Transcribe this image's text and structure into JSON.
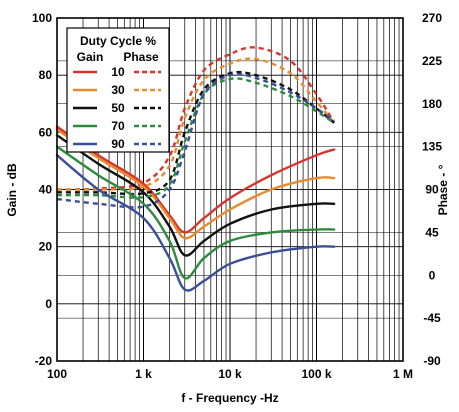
{
  "chart_data": {
    "type": "line",
    "xlabel": "f - Frequency -Hz",
    "ylabel_left": "Gain - dB",
    "ylabel_right": "Phase - °",
    "x_scale": "log",
    "xlim": [
      100,
      1000000
    ],
    "ylim_left": [
      -20,
      100
    ],
    "ylim_right": [
      -90,
      270
    ],
    "x_ticks": [
      {
        "value": 100,
        "label": "100"
      },
      {
        "value": 1000,
        "label": "1 k"
      },
      {
        "value": 10000,
        "label": "10 k"
      },
      {
        "value": 100000,
        "label": "100 k"
      },
      {
        "value": 1000000,
        "label": "1 M"
      }
    ],
    "y_ticks_left": [
      {
        "value": 100,
        "label": "100"
      },
      {
        "value": 80,
        "label": "80"
      },
      {
        "value": 60,
        "label": "60"
      },
      {
        "value": 40,
        "label": "40"
      },
      {
        "value": 20,
        "label": "20"
      },
      {
        "value": 0,
        "label": "0"
      },
      {
        "value": -20,
        "label": "-20"
      }
    ],
    "y_ticks_right": [
      {
        "value": 270,
        "label": "270"
      },
      {
        "value": 225,
        "label": "225"
      },
      {
        "value": 180,
        "label": "180"
      },
      {
        "value": 135,
        "label": "135"
      },
      {
        "value": 90,
        "label": "90"
      },
      {
        "value": 45,
        "label": "45"
      },
      {
        "value": 0,
        "label": "0"
      },
      {
        "value": -45,
        "label": "-45"
      },
      {
        "value": -90,
        "label": "-90"
      }
    ],
    "grid": true,
    "legend": {
      "title": "Duty Cycle %",
      "col_gain": "Gain",
      "col_phase": "Phase",
      "placement": "top-left"
    },
    "series": [
      {
        "name": "10",
        "color": "#d9342b",
        "gain_points": [
          [
            100,
            62
          ],
          [
            300,
            52
          ],
          [
            1000,
            42
          ],
          [
            2000,
            31
          ],
          [
            3000,
            25
          ],
          [
            5000,
            30
          ],
          [
            10000,
            37
          ],
          [
            30000,
            45
          ],
          [
            100000,
            52
          ],
          [
            160000,
            54
          ]
        ],
        "phase_points": [
          [
            100,
            90
          ],
          [
            300,
            91
          ],
          [
            1000,
            97
          ],
          [
            2000,
            125
          ],
          [
            3000,
            175
          ],
          [
            5000,
            215
          ],
          [
            10000,
            232
          ],
          [
            20000,
            239
          ],
          [
            50000,
            225
          ],
          [
            100000,
            190
          ],
          [
            160000,
            160
          ]
        ]
      },
      {
        "name": "30",
        "color": "#e88b2e",
        "gain_points": [
          [
            100,
            61
          ],
          [
            300,
            51
          ],
          [
            1000,
            41
          ],
          [
            2000,
            30
          ],
          [
            3000,
            23
          ],
          [
            5000,
            27
          ],
          [
            10000,
            33
          ],
          [
            30000,
            40
          ],
          [
            100000,
            44
          ],
          [
            160000,
            44
          ]
        ],
        "phase_points": [
          [
            100,
            90
          ],
          [
            300,
            90
          ],
          [
            1000,
            93
          ],
          [
            2000,
            115
          ],
          [
            3000,
            165
          ],
          [
            5000,
            205
          ],
          [
            10000,
            222
          ],
          [
            20000,
            227
          ],
          [
            50000,
            212
          ],
          [
            100000,
            182
          ],
          [
            160000,
            160
          ]
        ]
      },
      {
        "name": "50",
        "color": "#111111",
        "gain_points": [
          [
            100,
            59
          ],
          [
            300,
            49
          ],
          [
            1000,
            39
          ],
          [
            2000,
            27
          ],
          [
            3000,
            17
          ],
          [
            5000,
            22
          ],
          [
            10000,
            28
          ],
          [
            30000,
            33
          ],
          [
            100000,
            35
          ],
          [
            160000,
            35
          ]
        ],
        "phase_points": [
          [
            100,
            87
          ],
          [
            300,
            87
          ],
          [
            1000,
            86
          ],
          [
            2000,
            100
          ],
          [
            3000,
            150
          ],
          [
            5000,
            195
          ],
          [
            10000,
            212
          ],
          [
            20000,
            210
          ],
          [
            50000,
            195
          ],
          [
            100000,
            175
          ],
          [
            160000,
            160
          ]
        ]
      },
      {
        "name": "70",
        "color": "#2e8b3e",
        "gain_points": [
          [
            100,
            55
          ],
          [
            300,
            45
          ],
          [
            1000,
            35
          ],
          [
            2000,
            22
          ],
          [
            3000,
            9
          ],
          [
            5000,
            16
          ],
          [
            10000,
            22
          ],
          [
            30000,
            25
          ],
          [
            100000,
            26
          ],
          [
            160000,
            26
          ]
        ],
        "phase_points": [
          [
            100,
            84
          ],
          [
            300,
            84
          ],
          [
            1000,
            82
          ],
          [
            2000,
            95
          ],
          [
            3000,
            140
          ],
          [
            5000,
            190
          ],
          [
            10000,
            206
          ],
          [
            20000,
            202
          ],
          [
            50000,
            188
          ],
          [
            100000,
            172
          ],
          [
            160000,
            160
          ]
        ]
      },
      {
        "name": "90",
        "color": "#3a4f9a",
        "gain_points": [
          [
            100,
            52
          ],
          [
            300,
            40
          ],
          [
            1000,
            30
          ],
          [
            2000,
            16
          ],
          [
            3000,
            5
          ],
          [
            5000,
            8
          ],
          [
            10000,
            14
          ],
          [
            30000,
            18
          ],
          [
            100000,
            20
          ],
          [
            160000,
            20
          ]
        ],
        "phase_points": [
          [
            100,
            80
          ],
          [
            300,
            75
          ],
          [
            1000,
            72
          ],
          [
            2000,
            90
          ],
          [
            3000,
            130
          ],
          [
            5000,
            190
          ],
          [
            10000,
            210
          ],
          [
            20000,
            207
          ],
          [
            50000,
            192
          ],
          [
            100000,
            175
          ],
          [
            160000,
            162
          ]
        ]
      }
    ]
  }
}
